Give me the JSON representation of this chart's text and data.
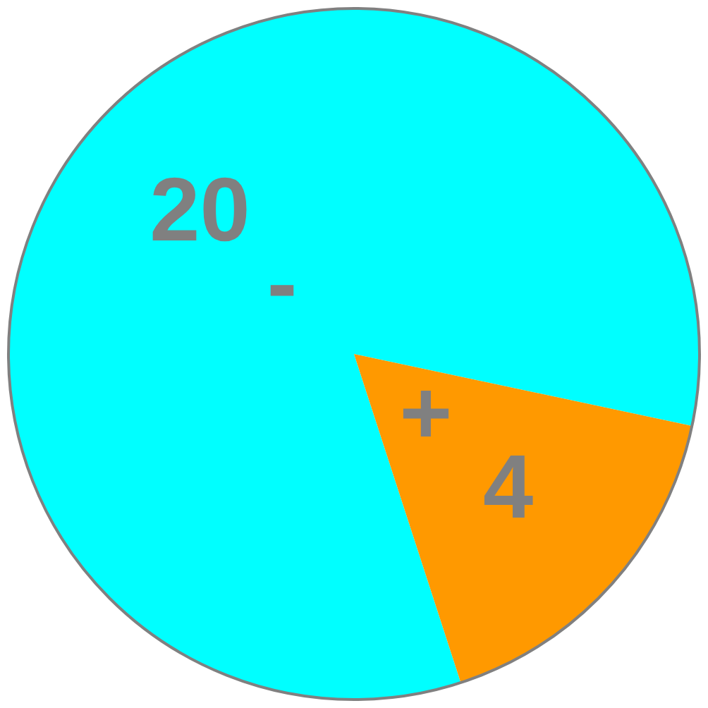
{
  "chart_data": {
    "type": "pie",
    "categories": [
      "-",
      "+"
    ],
    "values": [
      20,
      4
    ],
    "colors": [
      "#00ffff",
      "#ff9900"
    ],
    "data_labels": true,
    "legend": false
  }
}
